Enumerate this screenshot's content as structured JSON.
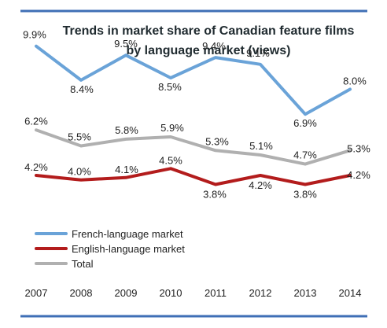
{
  "chart_data": {
    "type": "line",
    "title_lines": [
      "Trends in market share of Canadian feature films",
      "by language market (views)"
    ],
    "categories": [
      "2007",
      "2008",
      "2009",
      "2010",
      "2011",
      "2012",
      "2013",
      "2014"
    ],
    "ylim": [
      0,
      11
    ],
    "grid": false,
    "legend_position": "bottom-left",
    "series": [
      {
        "name": "French-language market",
        "color": "#6aa3d8",
        "values": [
          9.9,
          8.4,
          9.5,
          8.5,
          9.4,
          9.1,
          6.9,
          8.0
        ],
        "labels": [
          "9.9%",
          "8.4%",
          "9.5%",
          "8.5%",
          "9.4%",
          "9.1%",
          "6.9%",
          "8.0%"
        ]
      },
      {
        "name": "English-language market",
        "color": "#b31c1c",
        "values": [
          4.2,
          4.0,
          4.1,
          4.5,
          3.8,
          4.2,
          3.8,
          4.2
        ],
        "labels": [
          "4.2%",
          "4.0%",
          "4.1%",
          "4.5%",
          "3.8%",
          "4.2%",
          "3.8%",
          "4.2%"
        ]
      },
      {
        "name": "Total",
        "color": "#b0b0b0",
        "values": [
          6.2,
          5.5,
          5.8,
          5.9,
          5.3,
          5.1,
          4.7,
          5.3
        ],
        "labels": [
          "6.2%",
          "5.5%",
          "5.8%",
          "5.9%",
          "5.3%",
          "5.1%",
          "4.7%",
          "5.3%"
        ]
      }
    ],
    "frame_color": "#3f6fb6"
  }
}
